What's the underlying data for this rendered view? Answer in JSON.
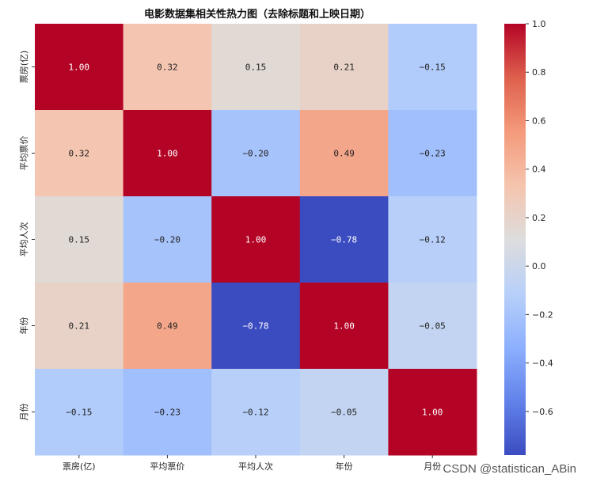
{
  "chart_data": {
    "type": "heatmap",
    "title": "电影数据集相关性热力图（去除标题和上映日期）",
    "rows": [
      "票房(亿)",
      "平均票价",
      "平均人次",
      "年份",
      "月份"
    ],
    "columns": [
      "票房(亿)",
      "平均票价",
      "平均人次",
      "年份",
      "月份"
    ],
    "values": [
      [
        1.0,
        0.32,
        0.15,
        0.21,
        -0.15
      ],
      [
        0.32,
        1.0,
        -0.2,
        0.49,
        -0.23
      ],
      [
        0.15,
        -0.2,
        1.0,
        -0.78,
        -0.12
      ],
      [
        0.21,
        0.49,
        -0.78,
        1.0,
        -0.05
      ],
      [
        -0.15,
        -0.23,
        -0.12,
        -0.05,
        1.0
      ]
    ],
    "value_labels": [
      [
        "1.00",
        "0.32",
        "0.15",
        "0.21",
        "−0.15"
      ],
      [
        "0.32",
        "1.00",
        "−0.20",
        "0.49",
        "−0.23"
      ],
      [
        "0.15",
        "−0.20",
        "1.00",
        "−0.78",
        "−0.12"
      ],
      [
        "0.21",
        "0.49",
        "−0.78",
        "1.00",
        "−0.05"
      ],
      [
        "−0.15",
        "−0.23",
        "−0.12",
        "−0.05",
        "1.00"
      ]
    ],
    "colormap": "coolwarm",
    "colorbar": {
      "range": [
        -0.78,
        1.0
      ],
      "ticks": [
        1.0,
        0.8,
        0.6,
        0.4,
        0.2,
        0.0,
        -0.2,
        -0.4,
        -0.6
      ],
      "tick_labels": [
        "1.0",
        "0.8",
        "0.6",
        "0.4",
        "0.2",
        "0.0",
        "−0.2",
        "−0.4",
        "−0.6"
      ]
    }
  },
  "watermark": "CSDN @statistican_ABin"
}
